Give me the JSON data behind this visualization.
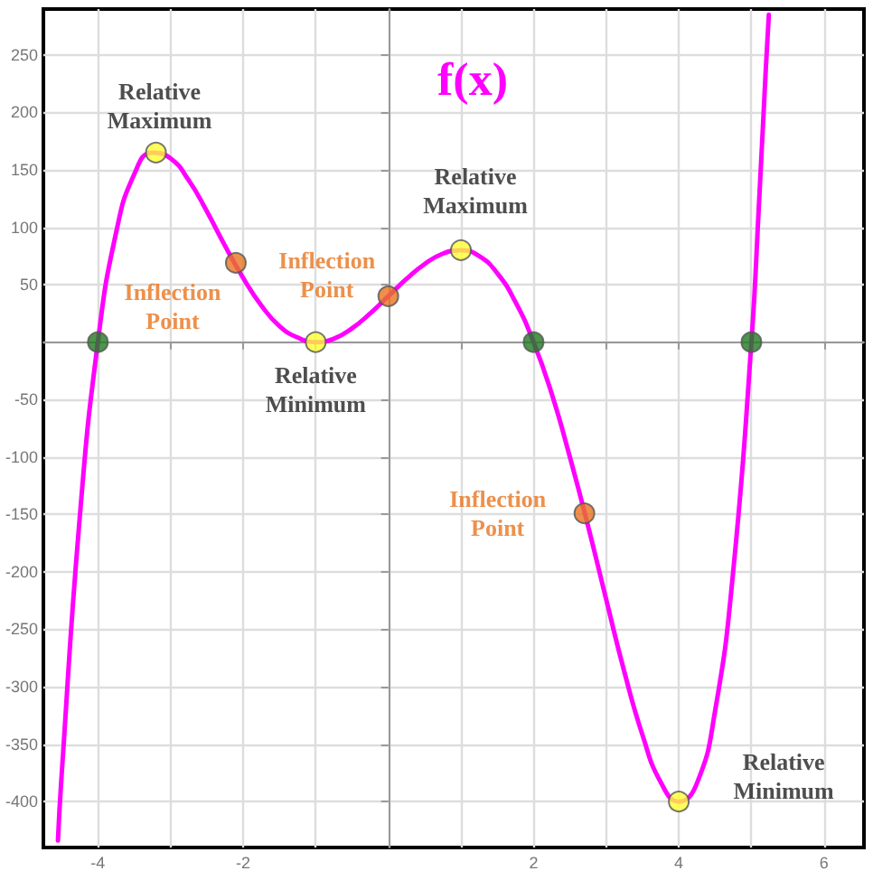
{
  "chart_data": {
    "type": "line",
    "title": "f(x)",
    "xlim": [
      -4.75,
      6.55
    ],
    "ylim": [
      -440,
      290
    ],
    "xticks": [
      {
        "value": -4,
        "label": "-4"
      },
      {
        "value": -3,
        "label": null
      },
      {
        "value": -2,
        "label": "-2"
      },
      {
        "value": -1,
        "label": null
      },
      {
        "value": 0,
        "label": null
      },
      {
        "value": 1,
        "label": null
      },
      {
        "value": 2,
        "label": "2"
      },
      {
        "value": 3,
        "label": null
      },
      {
        "value": 4,
        "label": "4"
      },
      {
        "value": 5,
        "label": null
      },
      {
        "value": 6,
        "label": "6"
      }
    ],
    "yticks": [
      -400,
      -350,
      -300,
      -250,
      -200,
      -150,
      -100,
      -50,
      {
        "value": 0,
        "label": null
      },
      50,
      100,
      150,
      200,
      250
    ],
    "grid": true,
    "series": [
      {
        "color": "#ff00ff",
        "marker": "none",
        "x": [
          -4.55,
          -4.5,
          -4.25,
          -4,
          -3.75,
          -3.5,
          -3.25,
          -3,
          -2.75,
          -2.5,
          -2.25,
          -2,
          -1.75,
          -1.5,
          -1.25,
          -1,
          -0.75,
          -0.5,
          -0.25,
          0,
          0.25,
          0.5,
          0.75,
          1,
          1.25,
          1.5,
          1.75,
          2,
          2.25,
          2.5,
          2.75,
          3,
          3.25,
          3.5,
          3.75,
          4,
          4.25,
          4.5,
          4.75,
          5,
          5.1,
          5.2,
          5.24
        ],
        "values": [
          -434,
          -378,
          -153,
          0,
          95,
          146,
          165,
          160,
          141,
          114,
          84,
          56,
          32,
          14,
          4,
          0,
          3,
          12,
          25,
          40,
          55,
          68,
          77,
          80,
          75,
          60,
          35,
          0,
          -45,
          -100,
          -160,
          -224,
          -287,
          -342,
          -383,
          -400,
          -384,
          -321,
          -199,
          0,
          115,
          240,
          285
        ]
      },
      {
        "type": "scatter",
        "color": "#1f7a1f",
        "marker": "circle",
        "x": [
          -4,
          2,
          5
        ],
        "values": [
          0,
          0,
          0
        ]
      },
      {
        "type": "scatter",
        "color": "#ffff33",
        "marker": "circle",
        "x": [
          -3.2,
          -1,
          1,
          4
        ],
        "values": [
          165,
          0,
          80,
          -400
        ],
        "value_labels": [
          "Relative\nMaximum",
          "Relative\nMinimum",
          "Relative\nMaximum",
          "Relative\nMinimum"
        ]
      },
      {
        "type": "scatter",
        "color": "#e8741e",
        "marker": "circle",
        "x": [
          -2.1,
          0,
          2.7
        ],
        "values": [
          69,
          40,
          -149
        ],
        "value_labels": [
          "Inflection\nPoint",
          "Inflection\nPoint",
          "Inflection\nPoint"
        ]
      }
    ]
  }
}
